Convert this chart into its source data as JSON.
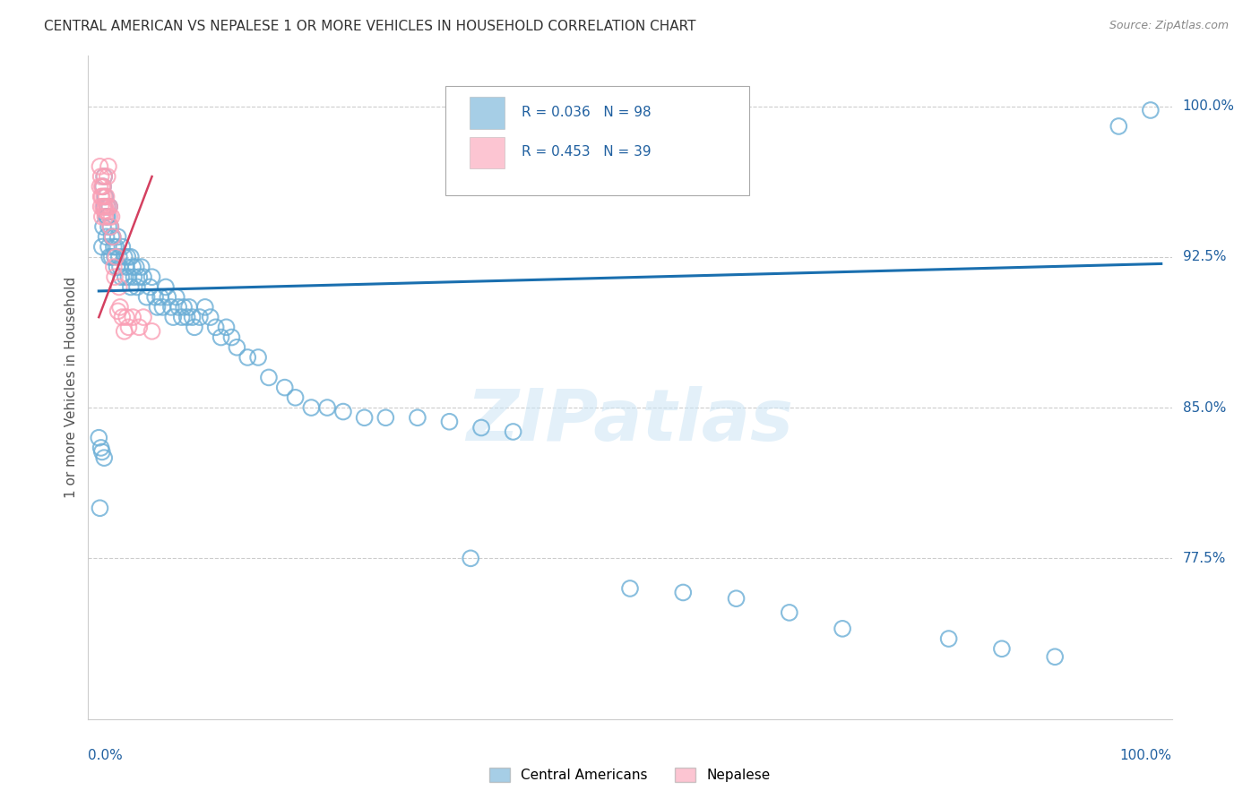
{
  "title": "CENTRAL AMERICAN VS NEPALESE 1 OR MORE VEHICLES IN HOUSEHOLD CORRELATION CHART",
  "source": "Source: ZipAtlas.com",
  "ylabel": "1 or more Vehicles in Household",
  "ytick_labels": [
    "100.0%",
    "92.5%",
    "85.0%",
    "77.5%"
  ],
  "ytick_values": [
    1.0,
    0.925,
    0.85,
    0.775
  ],
  "legend_r1": "R = 0.036",
  "legend_n1": "N = 98",
  "legend_r2": "R = 0.453",
  "legend_n2": "N = 39",
  "blue_color": "#6baed6",
  "pink_color": "#fa9fb5",
  "trendline_blue": "#1a6faf",
  "trendline_pink": "#d44060",
  "watermark": "ZIPatlas",
  "blue_scatter_x": [
    0.001,
    0.003,
    0.004,
    0.004,
    0.005,
    0.005,
    0.006,
    0.007,
    0.007,
    0.008,
    0.008,
    0.009,
    0.009,
    0.01,
    0.01,
    0.011,
    0.012,
    0.012,
    0.013,
    0.014,
    0.015,
    0.016,
    0.017,
    0.018,
    0.019,
    0.02,
    0.021,
    0.022,
    0.024,
    0.025,
    0.026,
    0.027,
    0.028,
    0.03,
    0.03,
    0.032,
    0.033,
    0.035,
    0.036,
    0.038,
    0.04,
    0.042,
    0.045,
    0.048,
    0.05,
    0.053,
    0.055,
    0.058,
    0.06,
    0.063,
    0.065,
    0.068,
    0.07,
    0.073,
    0.075,
    0.078,
    0.08,
    0.083,
    0.085,
    0.088,
    0.09,
    0.095,
    0.1,
    0.105,
    0.11,
    0.115,
    0.12,
    0.125,
    0.13,
    0.14,
    0.15,
    0.16,
    0.175,
    0.185,
    0.2,
    0.215,
    0.23,
    0.25,
    0.27,
    0.3,
    0.33,
    0.36,
    0.39,
    0.0,
    0.002,
    0.003,
    0.005,
    0.35,
    0.5,
    0.55,
    0.6,
    0.65,
    0.7,
    0.8,
    0.85,
    0.9,
    0.96,
    0.99
  ],
  "blue_scatter_y": [
    0.8,
    0.93,
    0.96,
    0.94,
    0.965,
    0.95,
    0.955,
    0.945,
    0.935,
    0.95,
    0.945,
    0.94,
    0.93,
    0.95,
    0.925,
    0.94,
    0.935,
    0.925,
    0.935,
    0.93,
    0.925,
    0.93,
    0.92,
    0.935,
    0.925,
    0.92,
    0.915,
    0.93,
    0.925,
    0.915,
    0.92,
    0.925,
    0.915,
    0.925,
    0.91,
    0.92,
    0.915,
    0.92,
    0.91,
    0.915,
    0.92,
    0.915,
    0.905,
    0.91,
    0.915,
    0.905,
    0.9,
    0.905,
    0.9,
    0.91,
    0.905,
    0.9,
    0.895,
    0.905,
    0.9,
    0.895,
    0.9,
    0.895,
    0.9,
    0.895,
    0.89,
    0.895,
    0.9,
    0.895,
    0.89,
    0.885,
    0.89,
    0.885,
    0.88,
    0.875,
    0.875,
    0.865,
    0.86,
    0.855,
    0.85,
    0.85,
    0.848,
    0.845,
    0.845,
    0.845,
    0.843,
    0.84,
    0.838,
    0.835,
    0.83,
    0.828,
    0.825,
    0.775,
    0.76,
    0.758,
    0.755,
    0.748,
    0.74,
    0.735,
    0.73,
    0.726,
    0.99,
    0.998
  ],
  "pink_scatter_x": [
    0.001,
    0.001,
    0.002,
    0.002,
    0.002,
    0.003,
    0.003,
    0.003,
    0.004,
    0.004,
    0.005,
    0.005,
    0.005,
    0.006,
    0.006,
    0.007,
    0.007,
    0.008,
    0.008,
    0.009,
    0.01,
    0.01,
    0.011,
    0.012,
    0.013,
    0.014,
    0.015,
    0.016,
    0.018,
    0.019,
    0.02,
    0.022,
    0.024,
    0.026,
    0.028,
    0.032,
    0.038,
    0.042,
    0.05
  ],
  "pink_scatter_y": [
    0.96,
    0.97,
    0.965,
    0.955,
    0.95,
    0.96,
    0.955,
    0.945,
    0.96,
    0.95,
    0.965,
    0.955,
    0.948,
    0.95,
    0.945,
    0.955,
    0.948,
    0.95,
    0.965,
    0.97,
    0.945,
    0.95,
    0.94,
    0.945,
    0.935,
    0.92,
    0.915,
    0.925,
    0.898,
    0.91,
    0.9,
    0.895,
    0.888,
    0.895,
    0.89,
    0.895,
    0.89,
    0.895,
    0.888
  ],
  "trendline_blue_slope": 0.0136,
  "trendline_blue_intercept": 0.908,
  "trendline_pink_x0": 0.0,
  "trendline_pink_x1": 0.05,
  "trendline_pink_y0": 0.895,
  "trendline_pink_y1": 0.965,
  "xlim": [
    -0.01,
    1.01
  ],
  "ylim": [
    0.695,
    1.025
  ]
}
